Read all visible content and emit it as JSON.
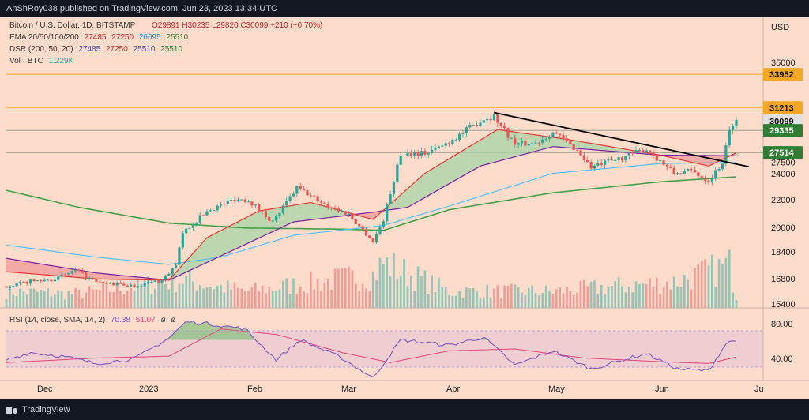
{
  "header": {
    "published": "AnShRoy038 published on TradingView.com, Jun 23, 2023 13:34 UTC"
  },
  "legend": {
    "symbol": "Bitcoin / U.S. Dollar, 1D, BITSTAMP",
    "ohlc": "O29891 H30235 L29820 C30099 +210 (+0.70%)",
    "ema_label": "EMA 20/50/100/200",
    "ema_values": [
      "27485",
      "27250",
      "26695",
      "25510"
    ],
    "dsr_label": "DSR (200, 50, 20)",
    "dsr_values": [
      "27485",
      "27250",
      "25510",
      "25510"
    ],
    "vol_label": "Vol · BTC",
    "vol_value": "1.229K",
    "rsi_label": "RSI (14, close, SMA, 14, 2)",
    "rsi_values": [
      "70.38",
      "51.07",
      "ø",
      "ø"
    ]
  },
  "price_axis": {
    "currency": "USD",
    "ticks": [
      "35000",
      "24000",
      "22000",
      "20000",
      "18400",
      "16800",
      "15400"
    ],
    "rsi_ticks": [
      "80.00",
      "40.00"
    ]
  },
  "price_tags": [
    {
      "label": "33952",
      "kind": "level"
    },
    {
      "label": "31213",
      "kind": "level"
    },
    {
      "label": "30099",
      "kind": "last"
    },
    {
      "label": "29335",
      "kind": "green"
    },
    {
      "label": "27514",
      "kind": "green"
    },
    {
      "label": "27500",
      "kind": "hidden"
    }
  ],
  "time_axis": [
    "Dec",
    "2023",
    "Feb",
    "Mar",
    "Apr",
    "May",
    "Jun",
    "Ju"
  ],
  "footer": {
    "brand": "TradingView"
  },
  "colors": {
    "background": "#fddccb",
    "up": "#26a69a",
    "down": "#ef5350",
    "ema20": "#e53935",
    "ema50": "#7b1fa2",
    "ema100": "#4fc3f7",
    "ema200": "#43a047",
    "dsr_green": "#a5d6a7",
    "dsr_red": "#ef9a9a",
    "trendline": "#000000",
    "level_line": "#f5a623",
    "rsi": "#7e57c2",
    "rsi_ma": "#ec407a"
  },
  "chart_data": {
    "type": "candlestick",
    "title": "Bitcoin / U.S. Dollar, 1D, BITSTAMP",
    "ylabel": "USD",
    "ylim": [
      15400,
      36000
    ],
    "x_range": [
      "2022-11-24",
      "2023-06-23"
    ],
    "horizontal_levels": [
      33952,
      31213,
      29335,
      27514
    ],
    "last_close": 30099,
    "trendline": {
      "from": {
        "date": "2023-04-14",
        "price": 30800
      },
      "to": {
        "date": "2023-06-23",
        "price": 26600
      }
    },
    "price_path": [
      [
        "2022-11-24",
        16500
      ],
      [
        "2022-12-01",
        16900
      ],
      [
        "2022-12-08",
        17100
      ],
      [
        "2022-12-14",
        17800
      ],
      [
        "2022-12-20",
        16800
      ],
      [
        "2022-12-31",
        16550
      ],
      [
        "2023-01-08",
        17000
      ],
      [
        "2023-01-12",
        18200
      ],
      [
        "2023-01-14",
        20900
      ],
      [
        "2023-01-21",
        22700
      ],
      [
        "2023-01-29",
        23700
      ],
      [
        "2023-02-02",
        23600
      ],
      [
        "2023-02-09",
        21800
      ],
      [
        "2023-02-16",
        24600
      ],
      [
        "2023-02-25",
        23100
      ],
      [
        "2023-03-03",
        22400
      ],
      [
        "2023-03-10",
        20200
      ],
      [
        "2023-03-13",
        22000
      ],
      [
        "2023-03-18",
        27400
      ],
      [
        "2023-03-26",
        27500
      ],
      [
        "2023-04-01",
        28400
      ],
      [
        "2023-04-11",
        30300
      ],
      [
        "2023-04-14",
        30500
      ],
      [
        "2023-04-20",
        28200
      ],
      [
        "2023-04-26",
        28300
      ],
      [
        "2023-05-01",
        29200
      ],
      [
        "2023-05-08",
        27700
      ],
      [
        "2023-05-12",
        26300
      ],
      [
        "2023-05-19",
        26900
      ],
      [
        "2023-05-28",
        27800
      ],
      [
        "2023-06-05",
        25800
      ],
      [
        "2023-06-10",
        26000
      ],
      [
        "2023-06-15",
        25200
      ],
      [
        "2023-06-19",
        26700
      ],
      [
        "2023-06-21",
        29200
      ],
      [
        "2023-06-22",
        30000
      ],
      [
        "2023-06-23",
        30099
      ]
    ],
    "ema200_path": [
      [
        "2022-11-24",
        24400
      ],
      [
        "2022-12-15",
        23000
      ],
      [
        "2023-01-10",
        21700
      ],
      [
        "2023-02-01",
        21300
      ],
      [
        "2023-03-01",
        21200
      ],
      [
        "2023-03-13",
        21100
      ],
      [
        "2023-04-01",
        22800
      ],
      [
        "2023-05-01",
        24200
      ],
      [
        "2023-06-01",
        25100
      ],
      [
        "2023-06-23",
        25510
      ]
    ],
    "ema100_path": [
      [
        "2022-11-24",
        19900
      ],
      [
        "2022-12-20",
        18900
      ],
      [
        "2023-01-10",
        18300
      ],
      [
        "2023-01-25",
        18900
      ],
      [
        "2023-02-15",
        20700
      ],
      [
        "2023-03-13",
        21500
      ],
      [
        "2023-04-01",
        23100
      ],
      [
        "2023-05-01",
        25800
      ],
      [
        "2023-06-01",
        26600
      ],
      [
        "2023-06-23",
        26695
      ]
    ],
    "ema50_path": [
      [
        "2022-11-24",
        18800
      ],
      [
        "2022-12-20",
        17600
      ],
      [
        "2023-01-10",
        17000
      ],
      [
        "2023-01-25",
        19000
      ],
      [
        "2023-02-15",
        21800
      ],
      [
        "2023-03-10",
        22600
      ],
      [
        "2023-03-20",
        23000
      ],
      [
        "2023-04-10",
        26400
      ],
      [
        "2023-05-01",
        28000
      ],
      [
        "2023-06-01",
        27300
      ],
      [
        "2023-06-23",
        27250
      ]
    ],
    "ema20_path": [
      [
        "2022-11-24",
        17700
      ],
      [
        "2022-12-20",
        17100
      ],
      [
        "2023-01-10",
        17000
      ],
      [
        "2023-01-21",
        20500
      ],
      [
        "2023-02-05",
        22700
      ],
      [
        "2023-02-20",
        23400
      ],
      [
        "2023-03-10",
        22000
      ],
      [
        "2023-03-25",
        25800
      ],
      [
        "2023-04-15",
        29400
      ],
      [
        "2023-05-05",
        28600
      ],
      [
        "2023-06-01",
        27300
      ],
      [
        "2023-06-15",
        26400
      ],
      [
        "2023-06-23",
        27485
      ]
    ],
    "rsi_range": [
      20,
      95
    ],
    "rsi_path": [
      [
        "2022-11-24",
        48
      ],
      [
        "2022-12-01",
        56
      ],
      [
        "2022-12-10",
        52
      ],
      [
        "2022-12-20",
        44
      ],
      [
        "2022-12-31",
        49
      ],
      [
        "2023-01-10",
        72
      ],
      [
        "2023-01-15",
        90
      ],
      [
        "2023-01-21",
        88
      ],
      [
        "2023-02-01",
        82
      ],
      [
        "2023-02-10",
        48
      ],
      [
        "2023-02-17",
        70
      ],
      [
        "2023-03-01",
        50
      ],
      [
        "2023-03-10",
        28
      ],
      [
        "2023-03-18",
        70
      ],
      [
        "2023-04-01",
        64
      ],
      [
        "2023-04-11",
        73
      ],
      [
        "2023-04-20",
        42
      ],
      [
        "2023-05-01",
        58
      ],
      [
        "2023-05-12",
        38
      ],
      [
        "2023-05-28",
        55
      ],
      [
        "2023-06-06",
        38
      ],
      [
        "2023-06-15",
        36
      ],
      [
        "2023-06-20",
        66
      ],
      [
        "2023-06-23",
        70.38
      ]
    ],
    "rsi_ma_path": [
      [
        "2022-11-24",
        45
      ],
      [
        "2022-12-20",
        50
      ],
      [
        "2023-01-10",
        52
      ],
      [
        "2023-01-25",
        82
      ],
      [
        "2023-02-10",
        76
      ],
      [
        "2023-03-01",
        56
      ],
      [
        "2023-03-15",
        45
      ],
      [
        "2023-04-01",
        58
      ],
      [
        "2023-04-20",
        60
      ],
      [
        "2023-05-10",
        50
      ],
      [
        "2023-06-01",
        46
      ],
      [
        "2023-06-15",
        44
      ],
      [
        "2023-06-23",
        51.07
      ]
    ],
    "volume_path": [
      [
        "2022-11-24",
        0.35
      ],
      [
        "2022-12-15",
        0.3
      ],
      [
        "2023-01-14",
        0.6
      ],
      [
        "2023-02-01",
        0.35
      ],
      [
        "2023-03-10",
        0.7
      ],
      [
        "2023-03-13",
        0.95
      ],
      [
        "2023-04-01",
        0.35
      ],
      [
        "2023-05-01",
        0.35
      ],
      [
        "2023-06-05",
        0.55
      ],
      [
        "2023-06-21",
        0.9
      ],
      [
        "2023-06-23",
        0.25
      ]
    ]
  }
}
